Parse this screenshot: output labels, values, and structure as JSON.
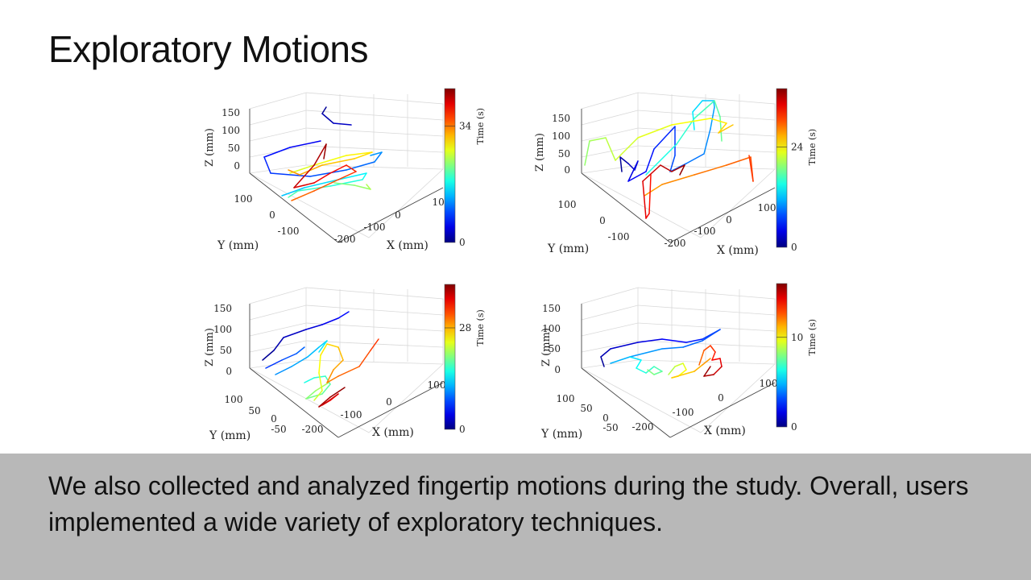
{
  "slide": {
    "title": "Exploratory Motions",
    "caption": "We also collected and analyzed fingertip motions during the study. Overall, users implemented a wide variety of exploratory techniques."
  },
  "chart_data": [
    {
      "type": "line3d",
      "xlabel": "X (mm)",
      "ylabel": "Y (mm)",
      "zlabel": "Z (mm)",
      "x_ticks": [
        "100",
        "0",
        "-100",
        "-200"
      ],
      "y_ticks": [
        "100",
        "0",
        "-100"
      ],
      "z_ticks": [
        "150",
        "100",
        "50",
        "0"
      ],
      "colorbar": {
        "label": "Time (s)",
        "ticks": [
          "34",
          "0"
        ],
        "max": 45
      },
      "grid": true
    },
    {
      "type": "line3d",
      "xlabel": "X (mm)",
      "ylabel": "Y (mm)",
      "zlabel": "Z (mm)",
      "x_ticks": [
        "100",
        "0",
        "-100",
        "-200"
      ],
      "y_ticks": [
        "100",
        "0",
        "-100"
      ],
      "z_ticks": [
        "150",
        "100",
        "50",
        "0"
      ],
      "colorbar": {
        "label": "Time (s)",
        "ticks": [
          "24",
          "0"
        ],
        "max": 38
      },
      "grid": true
    },
    {
      "type": "line3d",
      "xlabel": "X (mm)",
      "ylabel": "Y (mm)",
      "zlabel": "Z (mm)",
      "x_ticks": [
        "100",
        "0",
        "-100",
        "-200"
      ],
      "y_ticks": [
        "100",
        "50",
        "0",
        "-50"
      ],
      "z_ticks": [
        "150",
        "100",
        "50",
        "0"
      ],
      "colorbar": {
        "label": "Time (s)",
        "ticks": [
          "28",
          "0"
        ],
        "max": 40
      },
      "grid": true
    },
    {
      "type": "line3d",
      "xlabel": "X (mm)",
      "ylabel": "Y (mm)",
      "zlabel": "Z (mm)",
      "x_ticks": [
        "100",
        "0",
        "-100",
        "-200"
      ],
      "y_ticks": [
        "100",
        "50",
        "0",
        "-50"
      ],
      "z_ticks": [
        "150",
        "100",
        "50",
        "0"
      ],
      "colorbar": {
        "label": "Time (s)",
        "ticks": [
          "10",
          "0"
        ],
        "max": 16
      },
      "grid": true
    }
  ]
}
